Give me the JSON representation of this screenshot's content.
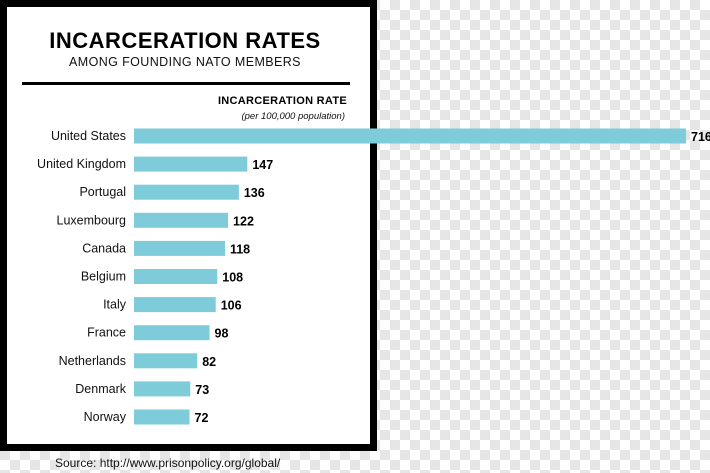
{
  "title": "INCARCERATION RATES",
  "subtitle": "AMONG FOUNDING NATO MEMBERS",
  "source": "Source: http://www.prisonpolicy.org/global/",
  "chart_data": {
    "type": "bar",
    "orientation": "horizontal",
    "header": "INCARCERATION RATE",
    "header_sub": "(per 100,000 population)",
    "categories": [
      "United States",
      "United Kingdom",
      "Portugal",
      "Luxembourg",
      "Canada",
      "Belgium",
      "Italy",
      "France",
      "Netherlands",
      "Denmark",
      "Norway"
    ],
    "values": [
      716,
      147,
      136,
      122,
      118,
      108,
      106,
      98,
      82,
      73,
      72
    ],
    "bar_color": "#7ecbd9",
    "grid": false,
    "legend": "none"
  }
}
